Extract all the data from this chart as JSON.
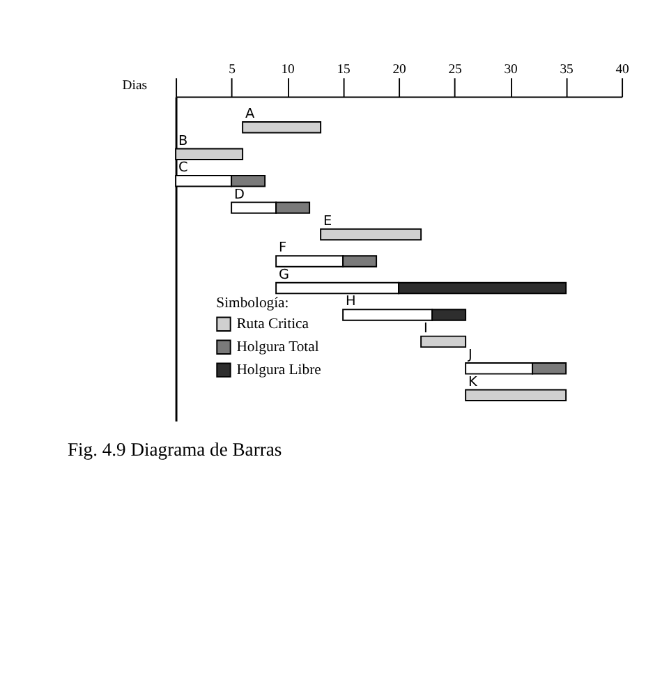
{
  "chart_data": {
    "type": "bar",
    "orientation": "horizontal",
    "title": "Fig. 4.9 Diagrama de Barras",
    "xlabel": "Dias",
    "legend_title": "Simbología:",
    "categories": [
      "A",
      "B",
      "C",
      "D",
      "E",
      "F",
      "G",
      "H",
      "I",
      "J",
      "K"
    ],
    "series": [
      {
        "color": "#ffffff",
        "base": [
          null,
          null,
          0,
          5,
          null,
          9,
          9,
          15,
          null,
          26,
          null
        ],
        "values": [
          null,
          null,
          5,
          4,
          null,
          6,
          11,
          8,
          null,
          6,
          null
        ]
      },
      {
        "name": "Ruta Critica",
        "color": "#d0d0d0",
        "base": [
          6,
          0,
          null,
          null,
          13,
          null,
          null,
          null,
          22,
          null,
          26
        ],
        "values": [
          7,
          6,
          null,
          null,
          9,
          null,
          null,
          null,
          4,
          null,
          9
        ]
      },
      {
        "name": "Holgura Total",
        "color": "#7a7a7a",
        "base": [
          null,
          null,
          5,
          9,
          null,
          15,
          null,
          null,
          null,
          32,
          null
        ],
        "values": [
          null,
          null,
          3,
          3,
          null,
          3,
          null,
          null,
          null,
          3,
          null
        ]
      },
      {
        "name": "Holgura Libre",
        "color": "#2e2e2e",
        "base": [
          null,
          null,
          null,
          null,
          null,
          null,
          20,
          23,
          null,
          null,
          null
        ],
        "values": [
          null,
          null,
          null,
          null,
          null,
          null,
          15,
          3,
          null,
          null,
          null
        ]
      }
    ],
    "xlim": [
      0,
      40
    ],
    "xticks": [
      {
        "value": 0,
        "label": null
      },
      5,
      10,
      15,
      20,
      25,
      30,
      35,
      40
    ],
    "grid": false,
    "legend": "bottom left"
  }
}
